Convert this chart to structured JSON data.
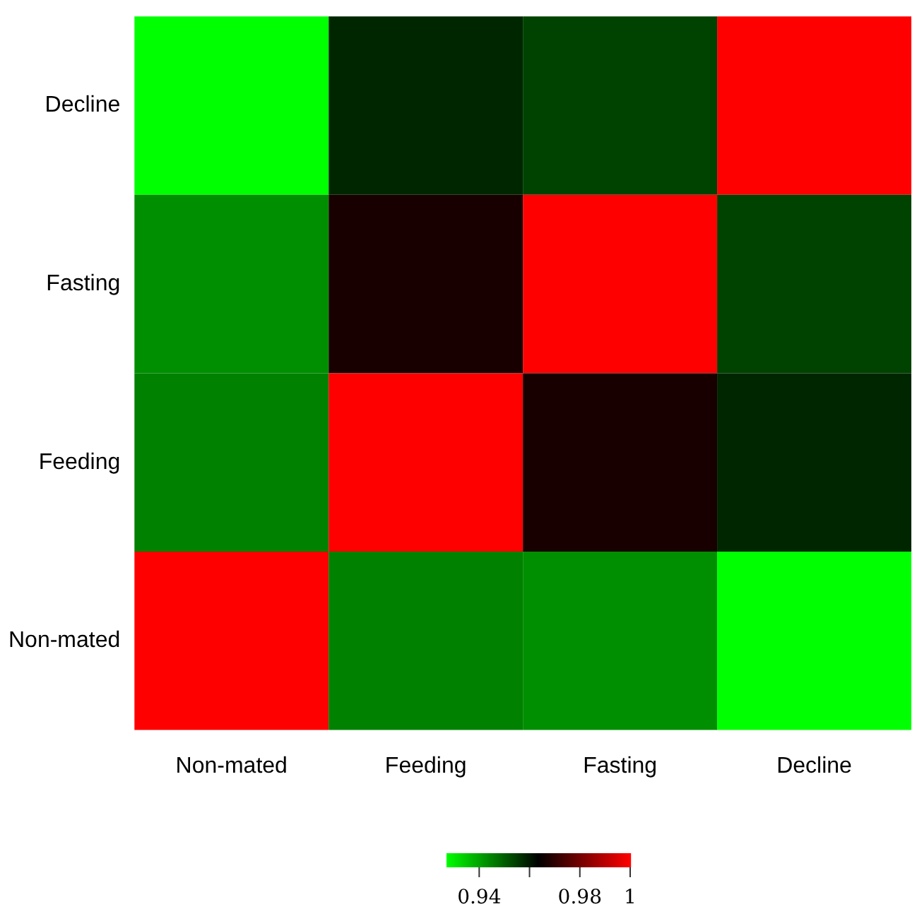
{
  "chart_data": {
    "type": "heatmap",
    "categories": [
      "Non-mated",
      "Feeding",
      "Fasting",
      "Decline"
    ],
    "y_categories": [
      "Decline",
      "Fasting",
      "Feeding",
      "Non-mated"
    ],
    "cells": [
      [
        0.927,
        0.958,
        0.954,
        1
      ],
      [
        0.943,
        0.967,
        1,
        0.954
      ],
      [
        0.945,
        1,
        0.967,
        0.958
      ],
      [
        1,
        0.945,
        0.943,
        0.927
      ]
    ],
    "clim": [
      0.927,
      1
    ],
    "cticks": [
      0.94,
      {
        "value": 0.96,
        "label": null
      },
      0.98,
      1
    ]
  }
}
